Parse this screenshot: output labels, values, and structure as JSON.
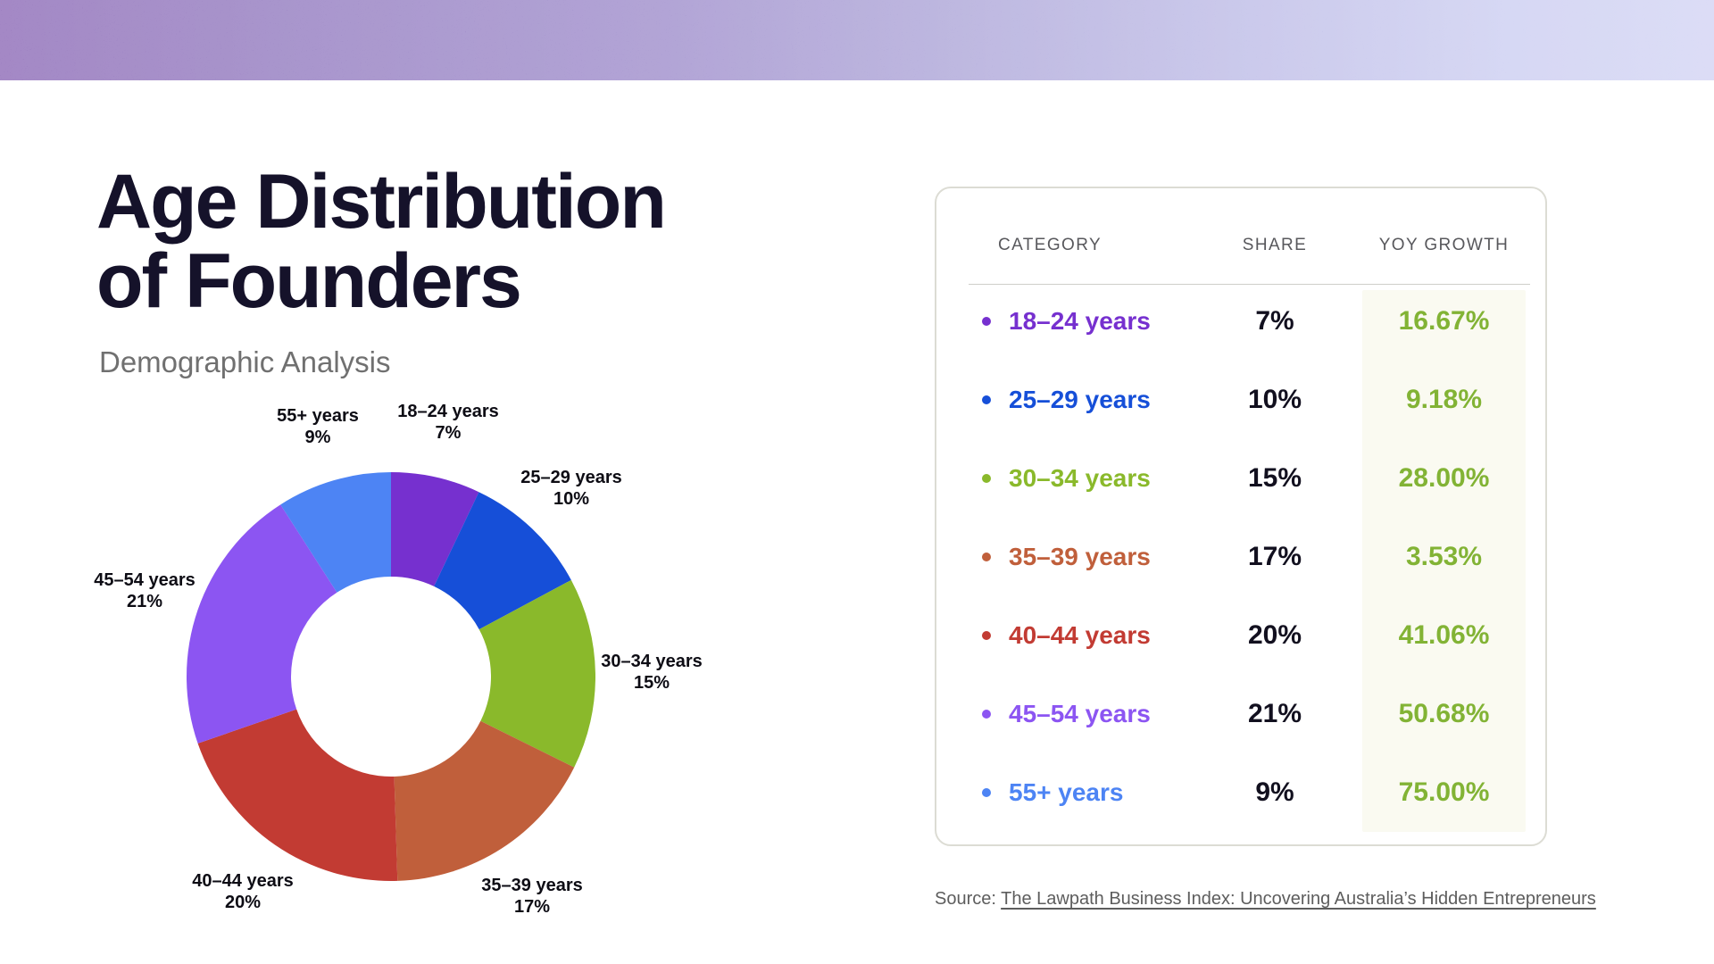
{
  "header": {
    "title_line1": "Age Distribution",
    "title_line2": "of Founders",
    "subtitle": "Demographic Analysis"
  },
  "table": {
    "headers": [
      "CATEGORY",
      "SHARE",
      "YOY GROWTH"
    ],
    "rows": [
      {
        "category": "18–24 years",
        "share": "7%",
        "growth": "16.67%",
        "color": "#7630cf"
      },
      {
        "category": "25–29 years",
        "share": "10%",
        "growth": "9.18%",
        "color": "#164fd8"
      },
      {
        "category": "30–34 years",
        "share": "15%",
        "growth": "28.00%",
        "color": "#8ab92b"
      },
      {
        "category": "35–39 years",
        "share": "17%",
        "growth": "3.53%",
        "color": "#c05f3b"
      },
      {
        "category": "40–44 years",
        "share": "20%",
        "growth": "41.06%",
        "color": "#c23b33"
      },
      {
        "category": "45–54 years",
        "share": "21%",
        "growth": "50.68%",
        "color": "#8c55f2"
      },
      {
        "category": "55+ years",
        "share": "9%",
        "growth": "75.00%",
        "color": "#4d84f4"
      }
    ],
    "growth_text_color": "#82b335",
    "growth_column_bg": "#fafaf1"
  },
  "source": {
    "prefix": "Source: ",
    "link_text": "The Lawpath Business Index: Uncovering Australia’s Hidden Entrepreneurs"
  },
  "chart_data": {
    "type": "pie",
    "variant": "donut",
    "categories": [
      "18–24 years",
      "25–29 years",
      "30–34 years",
      "35–39 years",
      "40–44 years",
      "45–54 years",
      "55+ years"
    ],
    "values": [
      7,
      10,
      15,
      17,
      20,
      21,
      9
    ],
    "unit": "%",
    "colors": [
      "#7630cf",
      "#164fd8",
      "#8ab92b",
      "#c05f3b",
      "#c23b33",
      "#8c55f2",
      "#4d84f4"
    ],
    "start_angle_deg": 0,
    "direction": "clockwise",
    "inner_radius_ratio": 0.49,
    "labels_outside": true,
    "title": "Age Distribution of Founders",
    "subtitle": "Demographic Analysis"
  },
  "banner": {
    "gradient_left": "#8a67b5",
    "gradient_right": "#d2d3f4"
  }
}
